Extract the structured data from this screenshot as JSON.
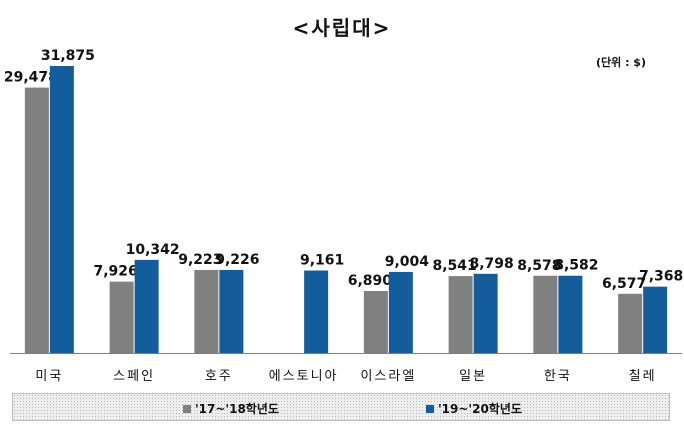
{
  "chart_data": {
    "type": "bar",
    "title": "<사립대>",
    "unit_label": "(단위 : $)",
    "categories": [
      "미국",
      "스페인",
      "호주",
      "에스토니아",
      "이스라엘",
      "일본",
      "한국",
      "칠레"
    ],
    "series": [
      {
        "name": "'17~'18학년도",
        "color": "#808080",
        "values": [
          29478,
          7926,
          9223,
          null,
          6890,
          8541,
          8578,
          6577
        ],
        "labels": [
          "29,478",
          "7,926",
          "9,223",
          "",
          "6,890",
          "8,541",
          "8,578",
          "6,577"
        ]
      },
      {
        "name": "'19~'20학년도",
        "color": "#135d9c",
        "values": [
          31875,
          10342,
          9226,
          9161,
          9004,
          8798,
          8582,
          7368
        ],
        "labels": [
          "31,875",
          "10,342",
          "9,226",
          "9,161",
          "9,004",
          "8,798",
          "8,582",
          "7,368"
        ]
      }
    ],
    "ylim": [
      0,
      31875
    ],
    "grid": false,
    "legend_position": "bottom"
  }
}
